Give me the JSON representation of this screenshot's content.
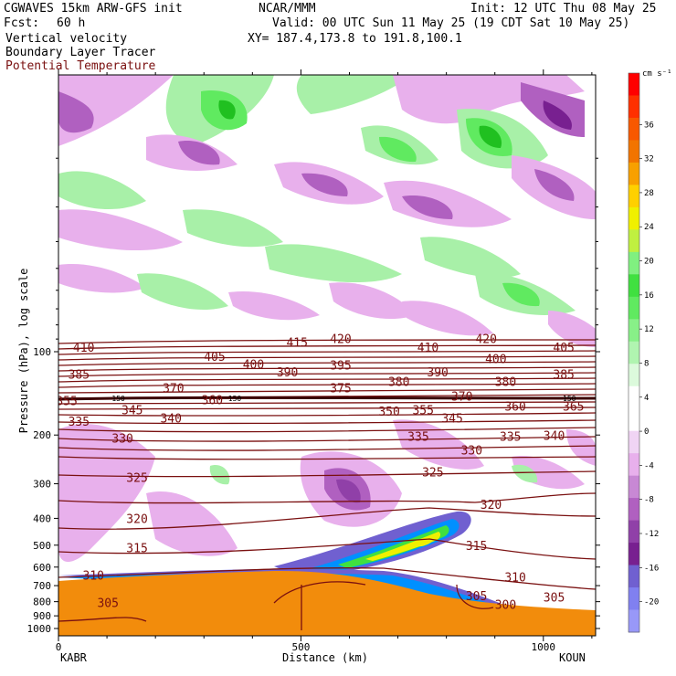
{
  "header": {
    "model": "CGWAVES 15km ARW-GFS init",
    "org": "NCAR/MMM",
    "init": "Init: 12 UTC Thu 08 May 25",
    "fcst_label": "Fcst:",
    "fcst_value": "60 h",
    "valid": "Valid: 00 UTC Sun 11 May 25 (19 CDT Sat 10 May 25)",
    "xy": "XY= 187.4,173.8 to 191.8,100.1",
    "field1": "Vertical velocity",
    "field2": "Boundary Layer Tracer",
    "field3": "Potential Temperature"
  },
  "colors": {
    "potential_temp": "#7a1010",
    "terrain": "#f28c0c",
    "positive_w": "#a8f0a8",
    "negative_w": "#e8b0ec"
  },
  "chart_data": {
    "type": "cross-section",
    "ylabel": "Pressure (hPa), log scale",
    "xlabel": "Distance (km)",
    "y_scale": "log",
    "x_ticks": [
      "0",
      "500",
      "1000"
    ],
    "x_tick_values": [
      0,
      500,
      1000
    ],
    "y_ticks": [
      "100",
      "200",
      "300",
      "400",
      "500",
      "600",
      "700",
      "800",
      "900",
      "1000"
    ],
    "y_tick_values": [
      100,
      200,
      300,
      400,
      500,
      600,
      700,
      800,
      900,
      1000
    ],
    "left_station": "KABR",
    "right_station": "KOUN",
    "colorbar": {
      "units": "cm s⁻¹",
      "labels": [
        "36",
        "32",
        "28",
        "24",
        "20",
        "16",
        "12",
        "8",
        "4",
        "0",
        "-4",
        "-8",
        "-12",
        "-16",
        "-20"
      ],
      "colors": [
        "#ff0000",
        "#ff3000",
        "#f85800",
        "#f27400",
        "#f8a000",
        "#ffd000",
        "#f0f000",
        "#c0f040",
        "#80f080",
        "#40e040",
        "#60ea60",
        "#88f088",
        "#b0f4b0",
        "#dcfadc",
        "#ffffff",
        "#ffffff",
        "#f0d4f4",
        "#e8b0ec",
        "#c888d4",
        "#b060c0",
        "#9040a8",
        "#782090",
        "#7060d0",
        "#8080f0",
        "#9898f8"
      ]
    },
    "theta_labels": [
      {
        "text": "410",
        "x": 30,
        "p": 100
      },
      {
        "text": "405",
        "x": 300,
        "p": 108
      },
      {
        "text": "400",
        "x": 380,
        "p": 115
      },
      {
        "text": "415",
        "x": 470,
        "p": 96
      },
      {
        "text": "420",
        "x": 560,
        "p": 93
      },
      {
        "text": "410",
        "x": 740,
        "p": 100
      },
      {
        "text": "420",
        "x": 860,
        "p": 93
      },
      {
        "text": "405",
        "x": 1020,
        "p": 100
      },
      {
        "text": "385",
        "x": 20,
        "p": 125
      },
      {
        "text": "390",
        "x": 450,
        "p": 123
      },
      {
        "text": "395",
        "x": 560,
        "p": 116
      },
      {
        "text": "390",
        "x": 760,
        "p": 123
      },
      {
        "text": "400",
        "x": 880,
        "p": 110
      },
      {
        "text": "385",
        "x": 1020,
        "p": 125
      },
      {
        "text": "380",
        "x": 680,
        "p": 133
      },
      {
        "text": "380",
        "x": 900,
        "p": 133
      },
      {
        "text": "370",
        "x": 215,
        "p": 140
      },
      {
        "text": "375",
        "x": 560,
        "p": 140
      },
      {
        "text": "370",
        "x": 810,
        "p": 150
      },
      {
        "text": "355",
        "x": -5,
        "p": 156
      },
      {
        "text": "360",
        "x": 295,
        "p": 155
      },
      {
        "text": "365",
        "x": 1040,
        "p": 163
      },
      {
        "text": "345",
        "x": 130,
        "p": 168
      },
      {
        "text": "340",
        "x": 210,
        "p": 180
      },
      {
        "text": "350",
        "x": 660,
        "p": 170
      },
      {
        "text": "355",
        "x": 730,
        "p": 168
      },
      {
        "text": "345",
        "x": 790,
        "p": 180
      },
      {
        "text": "360",
        "x": 920,
        "p": 163
      },
      {
        "text": "335",
        "x": 20,
        "p": 185
      },
      {
        "text": "335",
        "x": 720,
        "p": 210
      },
      {
        "text": "335",
        "x": 910,
        "p": 210
      },
      {
        "text": "340",
        "x": 1000,
        "p": 208
      },
      {
        "text": "330",
        "x": 110,
        "p": 213
      },
      {
        "text": "330",
        "x": 830,
        "p": 235
      },
      {
        "text": "325",
        "x": 140,
        "p": 295
      },
      {
        "text": "325",
        "x": 750,
        "p": 282
      },
      {
        "text": "320",
        "x": 870,
        "p": 370
      },
      {
        "text": "320",
        "x": 140,
        "p": 415
      },
      {
        "text": "315",
        "x": 140,
        "p": 530
      },
      {
        "text": "315",
        "x": 840,
        "p": 520
      },
      {
        "text": "310",
        "x": 50,
        "p": 665
      },
      {
        "text": "310",
        "x": 920,
        "p": 675
      },
      {
        "text": "305",
        "x": 80,
        "p": 835
      },
      {
        "text": "305",
        "x": 840,
        "p": 790
      },
      {
        "text": "305",
        "x": 1000,
        "p": 800
      },
      {
        "text": "300",
        "x": 900,
        "p": 850
      }
    ],
    "small_labels": [
      {
        "text": "150",
        "x": 110,
        "p": 151
      },
      {
        "text": "150",
        "x": 350,
        "p": 151
      },
      {
        "text": "150",
        "x": 1040,
        "p": 151
      }
    ]
  }
}
